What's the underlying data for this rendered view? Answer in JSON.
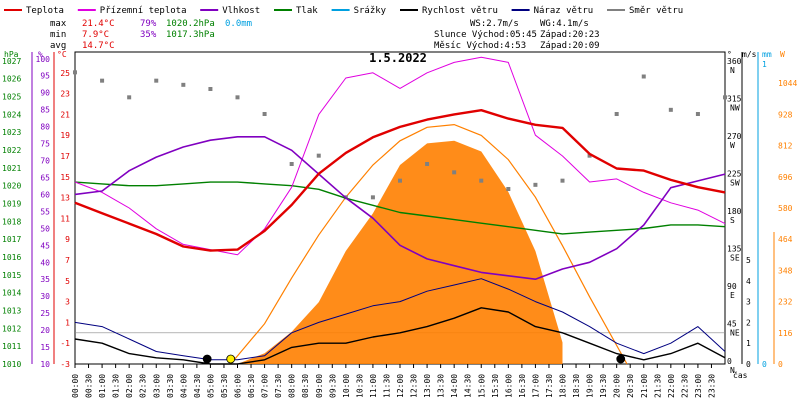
{
  "title": "1.5.2022",
  "legend": [
    {
      "label": "Teplota",
      "color": "#e00000"
    },
    {
      "label": "Přízemní teplota",
      "color": "#e000e0"
    },
    {
      "label": "Vlhkost",
      "color": "#8000c0"
    },
    {
      "label": "Tlak",
      "color": "#008000"
    },
    {
      "label": "Srážky",
      "color": "#00a0e0"
    },
    {
      "label": "Rychlost větru",
      "color": "#000000"
    },
    {
      "label": "Náraz větru",
      "color": "#000080"
    },
    {
      "label": "Směr větru",
      "color": "#808080"
    }
  ],
  "stats": {
    "max": {
      "label": "max",
      "temp": "21.4°C",
      "hum": "79%",
      "press": "1020.2hPa",
      "rain": "0.0mm"
    },
    "min": {
      "label": "min",
      "temp": "7.9°C",
      "hum": "35%",
      "press": "1017.3hPa"
    },
    "avg": {
      "label": "avg",
      "temp": "14.7°C"
    }
  },
  "wind_info": {
    "ws": "WS:2.7m/s",
    "wg": "WG:4.1m/s"
  },
  "sun": {
    "line": "Slunce Východ:05:45",
    "set": "Západ:20:23"
  },
  "moon": {
    "line": "Měsíc  Východ:4:53",
    "set": "Západ:20:09"
  },
  "axes": {
    "hpa_unit": "hPa",
    "pct_unit": "%",
    "temp_unit": "°C",
    "deg_unit": "°",
    "ms_unit": "m/s",
    "mm_unit": "mm",
    "sun_unit": "W",
    "x_label": "čas",
    "hpa_ticks": [
      "1027",
      "1026",
      "1025",
      "1024",
      "1023",
      "1022",
      "1021",
      "1020",
      "1019",
      "1018",
      "1017",
      "1016",
      "1015",
      "1014",
      "1013",
      "1012",
      "1011",
      "1010"
    ],
    "pct_ticks": [
      "100",
      "95",
      "90",
      "85",
      "80",
      "75",
      "70",
      "65",
      "60",
      "55",
      "50",
      "45",
      "40",
      "35",
      "30",
      "25",
      "20",
      "15",
      "10"
    ],
    "temp_ticks": [
      "25",
      "23",
      "21",
      "19",
      "17",
      "15",
      "13",
      "11",
      "9",
      "7",
      "5",
      "3",
      "1",
      "-1",
      "-3"
    ],
    "deg_ticks": [
      {
        "v": "360",
        "d": "N"
      },
      {
        "v": "315",
        "d": "NW"
      },
      {
        "v": "270",
        "d": "W"
      },
      {
        "v": "225",
        "d": "SW"
      },
      {
        "v": "180",
        "d": "S"
      },
      {
        "v": "135",
        "d": "SE"
      },
      {
        "v": "90",
        "d": "E"
      },
      {
        "v": "45",
        "d": "NE"
      },
      {
        "v": "0",
        "d": "N"
      }
    ],
    "ms_ticks": [
      "5",
      "4",
      "3",
      "2",
      "1",
      "0"
    ],
    "mm_ticks": [
      "1",
      "0"
    ],
    "sun_ticks": [
      "1044",
      "928",
      "812",
      "696",
      "580",
      "464",
      "348",
      "232",
      "116",
      "0"
    ],
    "time_ticks": [
      "00:00",
      "00:30",
      "01:00",
      "01:30",
      "02:00",
      "02:30",
      "03:00",
      "03:30",
      "04:00",
      "04:30",
      "05:00",
      "05:30",
      "06:00",
      "06:30",
      "07:00",
      "07:30",
      "08:00",
      "08:30",
      "09:00",
      "09:30",
      "10:00",
      "10:30",
      "11:00",
      "11:30",
      "12:00",
      "12:30",
      "13:00",
      "13:30",
      "14:00",
      "14:30",
      "15:00",
      "15:30",
      "16:00",
      "16:30",
      "17:00",
      "17:30",
      "18:00",
      "18:30",
      "19:00",
      "19:30",
      "20:00",
      "20:30",
      "21:00",
      "21:30",
      "22:00",
      "22:30",
      "23:00",
      "23:30"
    ]
  },
  "chart_data": {
    "type": "line",
    "title": "1.5.2022",
    "x_unit": "hours",
    "series": [
      {
        "name": "Teplota",
        "color": "#e00000",
        "axis": "°C",
        "x": [
          0,
          1,
          2,
          3,
          4,
          5,
          6,
          7,
          8,
          9,
          10,
          11,
          12,
          13,
          14,
          15,
          16,
          17,
          18,
          19,
          20,
          21,
          22,
          23,
          24
        ],
        "values": [
          12.5,
          11.5,
          10.5,
          9.5,
          8.3,
          7.9,
          8.0,
          9.8,
          12.3,
          15.3,
          17.3,
          18.8,
          19.8,
          20.5,
          21.0,
          21.4,
          20.6,
          20.0,
          19.7,
          17.2,
          15.8,
          15.6,
          14.7,
          14.0,
          13.5
        ]
      },
      {
        "name": "Přízemní teplota",
        "color": "#e000e0",
        "axis": "°C",
        "x": [
          0,
          1,
          2,
          3,
          4,
          5,
          6,
          7,
          8,
          9,
          10,
          11,
          12,
          13,
          14,
          15,
          16,
          17,
          18,
          19,
          20,
          21,
          22,
          23,
          24
        ],
        "values": [
          14.5,
          13.5,
          12.0,
          10.0,
          8.5,
          8.0,
          7.5,
          10.0,
          14.0,
          21.0,
          24.5,
          25.0,
          23.5,
          25.0,
          26.0,
          26.5,
          26.0,
          19.0,
          17.0,
          14.5,
          14.8,
          13.5,
          12.5,
          11.8,
          10.5
        ]
      },
      {
        "name": "Vlhkost",
        "color": "#8000c0",
        "axis": "%",
        "x": [
          0,
          1,
          2,
          3,
          4,
          5,
          6,
          7,
          8,
          9,
          10,
          11,
          12,
          13,
          14,
          15,
          16,
          17,
          18,
          19,
          20,
          21,
          22,
          23,
          24
        ],
        "values": [
          60,
          61,
          67,
          71,
          74,
          76,
          77,
          77,
          73,
          66,
          59,
          53,
          45,
          41,
          39,
          37,
          36,
          35,
          38,
          40,
          44,
          51,
          62,
          64,
          66
        ]
      },
      {
        "name": "Tlak",
        "color": "#008000",
        "axis": "hPa",
        "x": [
          0,
          1,
          2,
          3,
          4,
          5,
          6,
          7,
          8,
          9,
          10,
          11,
          12,
          13,
          14,
          15,
          16,
          17,
          18,
          19,
          20,
          21,
          22,
          23,
          24
        ],
        "values": [
          1020.2,
          1020.1,
          1020.0,
          1020.0,
          1020.1,
          1020.2,
          1020.2,
          1020.1,
          1020.0,
          1019.8,
          1019.3,
          1018.9,
          1018.5,
          1018.3,
          1018.1,
          1017.9,
          1017.7,
          1017.5,
          1017.3,
          1017.4,
          1017.5,
          1017.6,
          1017.8,
          1017.8,
          1017.7
        ]
      },
      {
        "name": "Rychlost větru",
        "color": "#000000",
        "axis": "m/s",
        "x": [
          0,
          1,
          2,
          3,
          4,
          5,
          6,
          7,
          8,
          9,
          10,
          11,
          12,
          13,
          14,
          15,
          16,
          17,
          18,
          19,
          20,
          21,
          22,
          23,
          24
        ],
        "values": [
          1.2,
          1.0,
          0.5,
          0.3,
          0.2,
          0.0,
          0.0,
          0.2,
          0.8,
          1.0,
          1.0,
          1.3,
          1.5,
          1.8,
          2.2,
          2.7,
          2.5,
          1.8,
          1.5,
          1.0,
          0.5,
          0.2,
          0.5,
          1.0,
          0.3
        ]
      },
      {
        "name": "Náraz větru",
        "color": "#000080",
        "axis": "m/s",
        "x": [
          0,
          1,
          2,
          3,
          4,
          5,
          6,
          7,
          8,
          9,
          10,
          11,
          12,
          13,
          14,
          15,
          16,
          17,
          18,
          19,
          20,
          21,
          22,
          23,
          24
        ],
        "values": [
          2.0,
          1.8,
          1.2,
          0.6,
          0.4,
          0.2,
          0.2,
          0.4,
          1.5,
          2.0,
          2.4,
          2.8,
          3.0,
          3.5,
          3.8,
          4.1,
          3.6,
          3.0,
          2.5,
          1.8,
          1.0,
          0.5,
          1.0,
          1.8,
          0.6
        ]
      },
      {
        "name": "Směr větru",
        "color": "#808080",
        "axis": "°",
        "style": "scatter",
        "x": [
          0,
          1,
          2,
          3,
          4,
          5,
          6,
          7,
          8,
          9,
          10,
          11,
          12,
          13,
          14,
          15,
          16,
          17,
          18,
          19,
          20,
          21,
          22,
          23,
          24
        ],
        "values": [
          350,
          340,
          320,
          340,
          335,
          330,
          320,
          300,
          240,
          250,
          200,
          200,
          220,
          240,
          230,
          220,
          210,
          215,
          220,
          250,
          300,
          345,
          305,
          300,
          320
        ]
      },
      {
        "name": "Sluneční záření",
        "color": "#ff8000",
        "axis": "W",
        "style": "area",
        "x": [
          6,
          7,
          8,
          9,
          10,
          11,
          12,
          13,
          14,
          15,
          16,
          17,
          18
        ],
        "values": [
          0,
          40,
          120,
          230,
          420,
          560,
          740,
          820,
          830,
          790,
          640,
          420,
          80
        ]
      },
      {
        "name": "Teoretické záření",
        "color": "#ff8000",
        "axis": "W",
        "style": "curve",
        "x": [
          5.75,
          7,
          8,
          9,
          10,
          11,
          12,
          13,
          14,
          15,
          16,
          17,
          18,
          19,
          20.38
        ],
        "values": [
          0,
          150,
          320,
          480,
          620,
          740,
          830,
          880,
          890,
          850,
          760,
          620,
          440,
          250,
          0
        ]
      }
    ],
    "markers": [
      {
        "name": "Východ slunce",
        "x": 5.75,
        "color": "#ffee00"
      },
      {
        "name": "Východ měsíce",
        "x": 4.88,
        "color": "#000000"
      },
      {
        "name": "Západ měsíce",
        "x": 20.15,
        "color": "#000000"
      }
    ],
    "ylim_temp": [
      -3,
      27
    ],
    "ylim_hum": [
      10,
      102
    ],
    "ylim_press": [
      1010,
      1027.5
    ],
    "ylim_wind": [
      0,
      5
    ],
    "ylim_sun": [
      0,
      1160
    ],
    "grid": false,
    "legend_position": "top"
  }
}
